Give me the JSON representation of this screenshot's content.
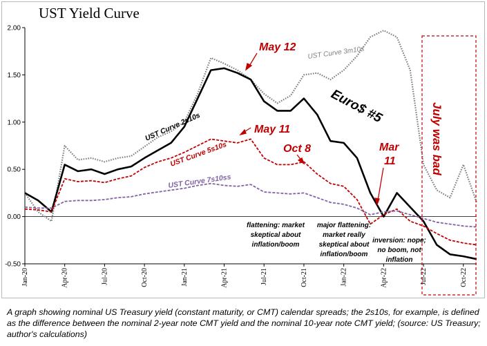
{
  "chart_data": {
    "type": "line",
    "title": "UST Yield Curve",
    "xlabel": "",
    "ylabel": "",
    "ylim": [
      -0.5,
      2.0
    ],
    "yticks": [
      "2.00",
      "1.50",
      "1.00",
      "0.50",
      "0.00",
      "-0.50"
    ],
    "x_ticks": [
      "Jan-20",
      "Apr-20",
      "Jul-20",
      "Oct-20",
      "Jan-21",
      "Apr-21",
      "Jul-21",
      "Oct-21",
      "Jan-22",
      "Apr-22",
      "Jul-22",
      "Oct-22"
    ],
    "x": [
      "2020-01",
      "2020-02",
      "2020-03",
      "2020-04",
      "2020-05",
      "2020-06",
      "2020-07",
      "2020-08",
      "2020-09",
      "2020-10",
      "2020-11",
      "2020-12",
      "2021-01",
      "2021-02",
      "2021-03",
      "2021-04",
      "2021-05",
      "2021-06",
      "2021-07",
      "2021-08",
      "2021-09",
      "2021-10",
      "2021-11",
      "2021-12",
      "2022-01",
      "2022-02",
      "2022-03",
      "2022-04",
      "2022-05",
      "2022-06",
      "2022-07",
      "2022-08",
      "2022-09",
      "2022-10",
      "2022-11"
    ],
    "grid": false,
    "series": [
      {
        "name": "UST Curve 3m10s",
        "color": "#7f7f7f",
        "style": "dotted",
        "values": [
          0.25,
          0.05,
          -0.05,
          0.75,
          0.6,
          0.62,
          0.58,
          0.62,
          0.64,
          0.74,
          0.84,
          0.9,
          1.0,
          1.3,
          1.68,
          1.62,
          1.55,
          1.45,
          1.3,
          1.2,
          1.28,
          1.5,
          1.52,
          1.45,
          1.55,
          1.7,
          1.9,
          1.97,
          1.9,
          1.55,
          0.55,
          0.28,
          0.2,
          0.55,
          0.15
        ]
      },
      {
        "name": "UST Curve 2s10s",
        "color": "#000000",
        "style": "solid",
        "values": [
          0.25,
          0.17,
          0.05,
          0.55,
          0.48,
          0.5,
          0.45,
          0.5,
          0.53,
          0.62,
          0.7,
          0.78,
          0.95,
          1.25,
          1.55,
          1.57,
          1.52,
          1.45,
          1.22,
          1.12,
          1.12,
          1.25,
          1.08,
          0.8,
          0.78,
          0.62,
          0.25,
          0.0,
          0.25,
          0.1,
          -0.05,
          -0.3,
          -0.4,
          -0.42,
          -0.45
        ]
      },
      {
        "name": "UST Curve 5s10s",
        "color": "#c00000",
        "style": "dashed",
        "values": [
          0.08,
          0.07,
          0.05,
          0.4,
          0.37,
          0.38,
          0.36,
          0.4,
          0.43,
          0.52,
          0.58,
          0.62,
          0.68,
          0.75,
          0.82,
          0.8,
          0.78,
          0.82,
          0.62,
          0.55,
          0.55,
          0.58,
          0.45,
          0.35,
          0.32,
          0.18,
          -0.08,
          0.02,
          0.08,
          -0.05,
          -0.1,
          -0.18,
          -0.25,
          -0.28,
          -0.3
        ]
      },
      {
        "name": "UST Curve 7s10ss",
        "color": "#8064a2",
        "style": "dashed",
        "values": [
          0.1,
          0.09,
          0.09,
          0.16,
          0.17,
          0.17,
          0.18,
          0.2,
          0.21,
          0.24,
          0.26,
          0.28,
          0.3,
          0.33,
          0.35,
          0.33,
          0.32,
          0.34,
          0.26,
          0.25,
          0.24,
          0.25,
          0.2,
          0.15,
          0.13,
          0.09,
          0.02,
          0.05,
          0.06,
          0.02,
          -0.02,
          -0.06,
          -0.08,
          -0.1,
          -0.11
        ]
      }
    ],
    "annotations": [
      {
        "text": "May 12",
        "color": "#c00000"
      },
      {
        "text": "May 11",
        "color": "#c00000"
      },
      {
        "text": "Oct 8",
        "color": "#c00000"
      },
      {
        "text": "Mar",
        "color": "#c00000"
      },
      {
        "text": "11",
        "color": "#c00000"
      },
      {
        "text": "Euro$ #5",
        "color": "#000000"
      },
      {
        "text": "July was bad",
        "color": "#c00000"
      },
      {
        "text": "flattening: market",
        "color": "#000000"
      },
      {
        "text": "skeptical about",
        "color": "#000000"
      },
      {
        "text": "inflation/boom",
        "color": "#000000"
      },
      {
        "text": "major flattening:",
        "color": "#000000"
      },
      {
        "text": "market really",
        "color": "#000000"
      },
      {
        "text": "skeptical about",
        "color": "#000000"
      },
      {
        "text": "inflation/boom",
        "color": "#000000"
      },
      {
        "text": "inversion: nope;",
        "color": "#000000"
      },
      {
        "text": "no boom, not",
        "color": "#000000"
      },
      {
        "text": "inflation",
        "color": "#000000"
      }
    ]
  },
  "caption": "A graph showing nominal US Treasury yield (constant maturity, or CMT) calendar spreads; the 2s10s, for example, is defined as the difference between the nominal 2-year note CMT yield and the nominal 10-year note CMT yield; (source: US Treasury; author's calculations)"
}
